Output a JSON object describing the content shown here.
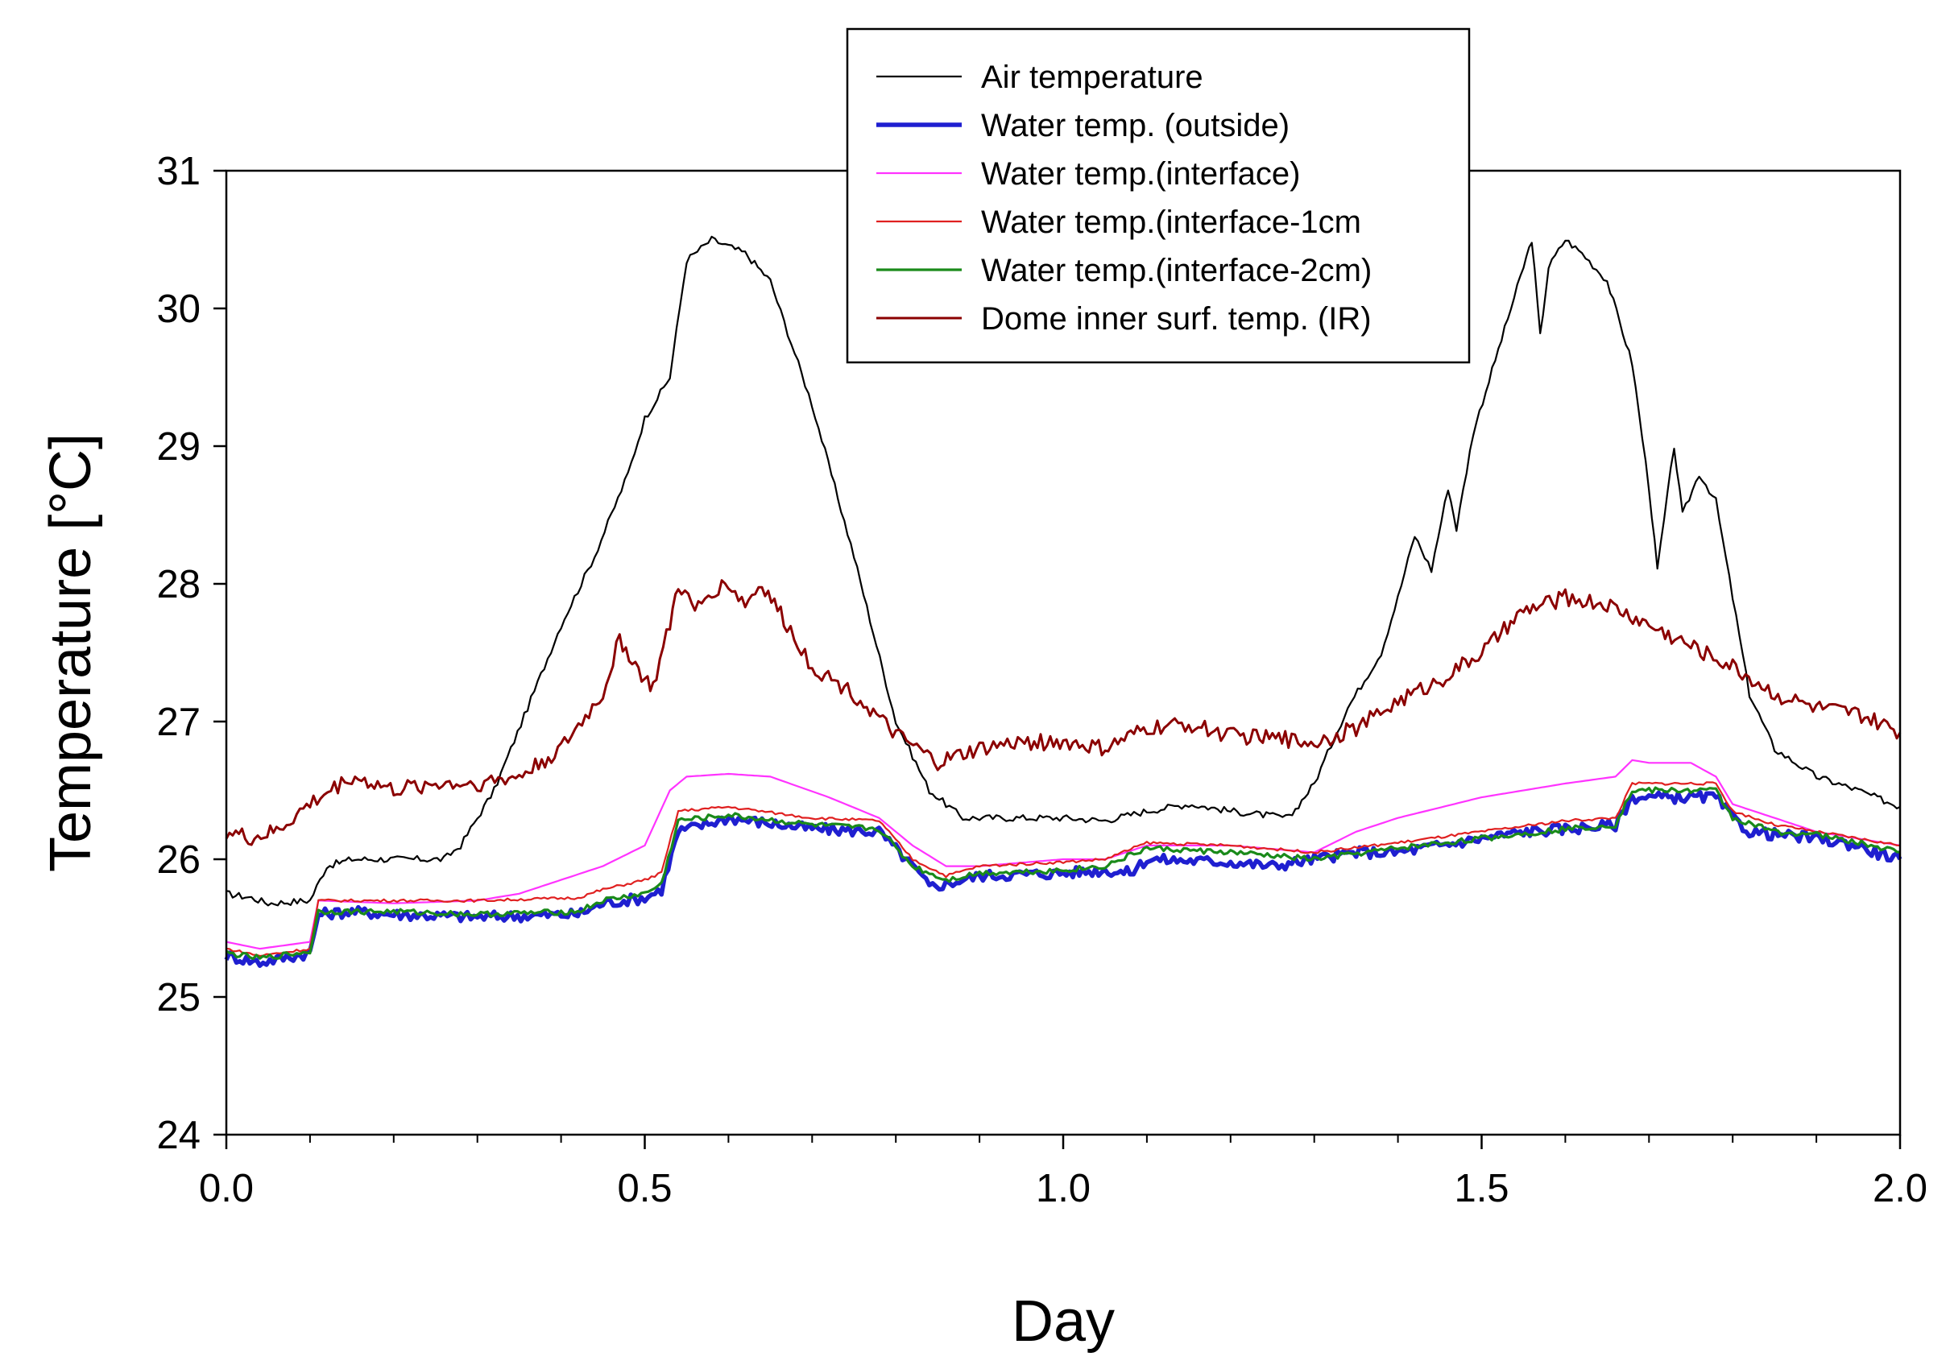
{
  "chart_data": {
    "type": "line",
    "title": "",
    "xlabel": "Day",
    "ylabel": "Temperature [°C]",
    "xlim": [
      0.0,
      2.0
    ],
    "ylim": [
      24,
      31
    ],
    "x_major_ticks": [
      0.0,
      0.5,
      1.0,
      1.5,
      2.0
    ],
    "x_tick_labels": [
      "0.0",
      "0.5",
      "1.0",
      "1.5",
      "2.0"
    ],
    "x_minor_step": 0.1,
    "y_ticks": [
      24,
      25,
      26,
      27,
      28,
      29,
      30,
      31
    ],
    "y_tick_labels": [
      "24",
      "25",
      "26",
      "27",
      "28",
      "29",
      "30",
      "31"
    ],
    "grid": false,
    "legend_position": "top-center",
    "series": [
      {
        "name": "Air temperature",
        "color": "#000000",
        "x": [
          0.0,
          0.03,
          0.05,
          0.1,
          0.12,
          0.15,
          0.2,
          0.26,
          0.28,
          0.32,
          0.36,
          0.4,
          0.44,
          0.48,
          0.5,
          0.53,
          0.55,
          0.58,
          0.6,
          0.62,
          0.65,
          0.7,
          0.75,
          0.8,
          0.84,
          0.88,
          0.9,
          1.0,
          1.05,
          1.1,
          1.15,
          1.2,
          1.27,
          1.3,
          1.34,
          1.38,
          1.4,
          1.42,
          1.44,
          1.46,
          1.47,
          1.49,
          1.52,
          1.55,
          1.56,
          1.57,
          1.58,
          1.6,
          1.62,
          1.65,
          1.68,
          1.7,
          1.71,
          1.73,
          1.74,
          1.76,
          1.78,
          1.8,
          1.82,
          1.85,
          1.9,
          1.95,
          2.0
        ],
        "y": [
          25.75,
          25.72,
          25.68,
          25.7,
          25.95,
          26.0,
          26.0,
          26.0,
          26.1,
          26.5,
          27.1,
          27.7,
          28.2,
          28.8,
          29.2,
          29.5,
          30.35,
          30.5,
          30.45,
          30.4,
          30.2,
          29.3,
          28.2,
          27.0,
          26.5,
          26.3,
          26.3,
          26.3,
          26.28,
          26.35,
          26.4,
          26.35,
          26.3,
          26.55,
          27.1,
          27.5,
          27.9,
          28.35,
          28.1,
          28.7,
          28.4,
          29.1,
          29.7,
          30.3,
          30.5,
          29.8,
          30.3,
          30.5,
          30.4,
          30.2,
          29.6,
          28.7,
          28.1,
          29.0,
          28.5,
          28.8,
          28.6,
          27.9,
          27.2,
          26.8,
          26.6,
          26.5,
          26.38
        ]
      },
      {
        "name": "Water temp. (outside)",
        "color": "#1f1fd0",
        "x": [
          0.0,
          0.04,
          0.1,
          0.11,
          0.15,
          0.2,
          0.3,
          0.42,
          0.45,
          0.5,
          0.52,
          0.54,
          0.6,
          0.7,
          0.78,
          0.82,
          0.84,
          0.86,
          0.9,
          1.0,
          1.05,
          1.08,
          1.1,
          1.2,
          1.25,
          1.3,
          1.35,
          1.4,
          1.45,
          1.5,
          1.55,
          1.6,
          1.66,
          1.68,
          1.7,
          1.75,
          1.78,
          1.8,
          1.82,
          1.85,
          1.9,
          1.95,
          1.97,
          2.0
        ],
        "y": [
          25.3,
          25.25,
          25.32,
          25.6,
          25.62,
          25.6,
          25.58,
          25.6,
          25.68,
          25.72,
          25.78,
          26.2,
          26.3,
          26.22,
          26.2,
          25.95,
          25.8,
          25.82,
          25.88,
          25.9,
          25.92,
          25.9,
          26.0,
          25.98,
          25.95,
          26.0,
          26.05,
          26.05,
          26.1,
          26.15,
          26.2,
          26.22,
          26.25,
          26.45,
          26.45,
          26.45,
          26.45,
          26.3,
          26.2,
          26.18,
          26.15,
          26.1,
          26.05,
          26.0
        ]
      },
      {
        "name": "Water temp.(interface)",
        "color": "#ff33ff",
        "x": [
          0.0,
          0.04,
          0.1,
          0.11,
          0.2,
          0.3,
          0.35,
          0.4,
          0.45,
          0.5,
          0.53,
          0.55,
          0.6,
          0.65,
          0.72,
          0.78,
          0.82,
          0.86,
          0.9,
          1.0,
          1.05,
          1.1,
          1.2,
          1.3,
          1.35,
          1.4,
          1.5,
          1.6,
          1.66,
          1.68,
          1.7,
          1.75,
          1.78,
          1.8,
          1.85,
          1.9,
          1.95,
          2.0
        ],
        "y": [
          25.4,
          25.35,
          25.4,
          25.7,
          25.68,
          25.7,
          25.75,
          25.85,
          25.95,
          26.1,
          26.5,
          26.6,
          26.62,
          26.6,
          26.45,
          26.3,
          26.1,
          25.95,
          25.95,
          26.0,
          26.0,
          26.1,
          26.1,
          26.05,
          26.2,
          26.3,
          26.45,
          26.55,
          26.6,
          26.72,
          26.7,
          26.7,
          26.6,
          26.4,
          26.3,
          26.2,
          26.15,
          26.1
        ]
      },
      {
        "name": "Water temp.(interface-1cm",
        "color": "#e02020",
        "x": [
          0.0,
          0.04,
          0.1,
          0.11,
          0.2,
          0.3,
          0.42,
          0.45,
          0.5,
          0.52,
          0.54,
          0.6,
          0.7,
          0.78,
          0.82,
          0.86,
          0.9,
          1.0,
          1.05,
          1.1,
          1.2,
          1.3,
          1.4,
          1.5,
          1.6,
          1.66,
          1.68,
          1.7,
          1.75,
          1.78,
          1.8,
          1.85,
          1.9,
          1.95,
          2.0
        ],
        "y": [
          25.35,
          25.3,
          25.35,
          25.7,
          25.7,
          25.7,
          25.72,
          25.78,
          25.85,
          25.9,
          26.35,
          26.38,
          26.3,
          26.28,
          26.0,
          25.88,
          25.95,
          25.98,
          26.0,
          26.12,
          26.1,
          26.05,
          26.12,
          26.2,
          26.28,
          26.3,
          26.55,
          26.55,
          26.55,
          26.55,
          26.35,
          26.25,
          26.2,
          26.15,
          26.1
        ]
      },
      {
        "name": "Water temp.(interface-2cm)",
        "color": "#1a8a1a",
        "x": [
          0.0,
          0.04,
          0.1,
          0.11,
          0.2,
          0.3,
          0.42,
          0.45,
          0.5,
          0.52,
          0.54,
          0.6,
          0.7,
          0.78,
          0.82,
          0.86,
          0.9,
          1.0,
          1.05,
          1.1,
          1.2,
          1.3,
          1.4,
          1.5,
          1.6,
          1.66,
          1.68,
          1.7,
          1.75,
          1.78,
          1.8,
          1.85,
          1.9,
          1.95,
          2.0
        ],
        "y": [
          25.32,
          25.28,
          25.33,
          25.62,
          25.62,
          25.6,
          25.62,
          25.7,
          25.75,
          25.82,
          26.28,
          26.32,
          26.25,
          26.22,
          25.95,
          25.85,
          25.9,
          25.92,
          25.95,
          26.08,
          26.05,
          26.0,
          26.08,
          26.15,
          26.22,
          26.25,
          26.5,
          26.5,
          26.5,
          26.5,
          26.3,
          26.2,
          26.18,
          26.12,
          26.05
        ]
      },
      {
        "name": "Dome inner surf. temp. (IR)",
        "color": "#8b0000",
        "x": [
          0.0,
          0.03,
          0.06,
          0.1,
          0.15,
          0.2,
          0.25,
          0.3,
          0.35,
          0.4,
          0.45,
          0.47,
          0.5,
          0.51,
          0.53,
          0.54,
          0.56,
          0.58,
          0.6,
          0.62,
          0.64,
          0.67,
          0.7,
          0.75,
          0.8,
          0.85,
          0.9,
          0.95,
          1.0,
          1.05,
          1.1,
          1.15,
          1.2,
          1.25,
          1.3,
          1.35,
          1.4,
          1.45,
          1.5,
          1.55,
          1.6,
          1.65,
          1.7,
          1.75,
          1.8,
          1.85,
          1.9,
          1.95,
          2.0
        ],
        "y": [
          26.2,
          26.15,
          26.2,
          26.4,
          26.6,
          26.5,
          26.55,
          26.55,
          26.6,
          26.8,
          27.2,
          27.6,
          27.3,
          27.25,
          27.7,
          28.0,
          27.8,
          27.95,
          28.0,
          27.85,
          28.0,
          27.7,
          27.4,
          27.2,
          26.9,
          26.7,
          26.8,
          26.85,
          26.85,
          26.8,
          26.95,
          26.98,
          26.9,
          26.88,
          26.85,
          26.95,
          27.15,
          27.3,
          27.5,
          27.8,
          27.9,
          27.85,
          27.7,
          27.55,
          27.4,
          27.2,
          27.1,
          27.05,
          26.92
        ]
      }
    ]
  }
}
